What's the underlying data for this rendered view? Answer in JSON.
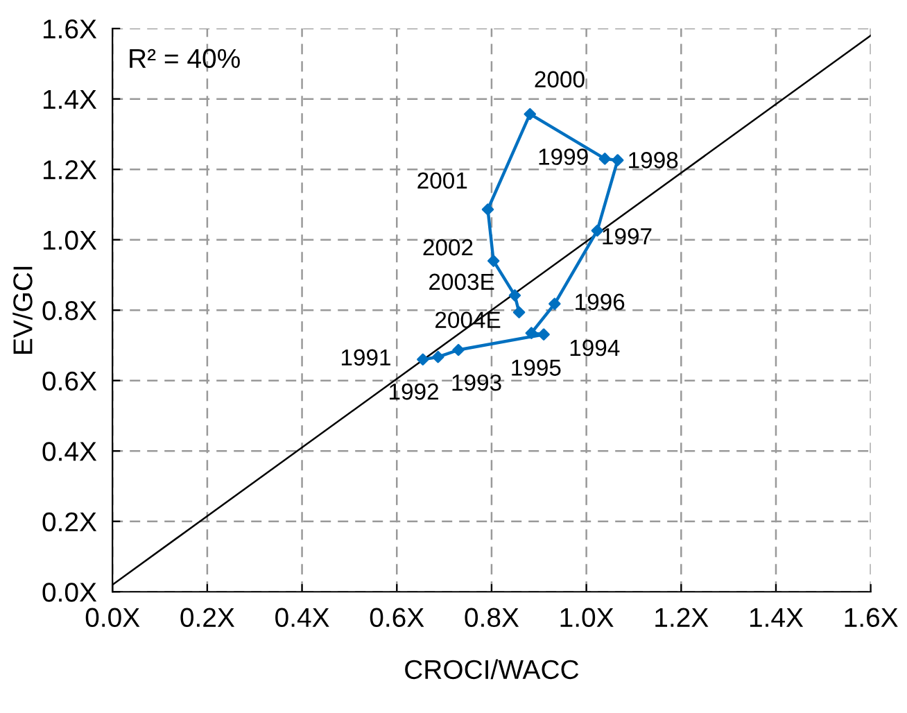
{
  "chart_data": {
    "type": "line",
    "xlabel": "CROCI/WACC",
    "ylabel": "EV/GCI",
    "series": [
      {
        "color": "#0070c0",
        "marker": "diamond",
        "x": [
          0.655,
          0.687,
          0.73,
          0.91,
          0.884,
          0.933,
          1.023,
          1.066,
          1.039,
          0.881,
          0.792,
          0.804,
          0.849,
          0.858
        ],
        "values": [
          0.66,
          0.667,
          0.687,
          0.731,
          0.735,
          0.818,
          1.026,
          1.226,
          1.23,
          1.357,
          1.086,
          0.94,
          0.842,
          0.794
        ]
      },
      {
        "color": "#000000",
        "marker": "none",
        "x": [
          0,
          1.6
        ],
        "values": [
          0.02,
          1.58
        ]
      }
    ],
    "annotations": [
      {
        "text": "1991",
        "x": 0.655,
        "y": 0.66
      },
      {
        "text": "1992",
        "x": 0.687,
        "y": 0.667
      },
      {
        "text": "1993",
        "x": 0.73,
        "y": 0.687
      },
      {
        "text": "1994",
        "x": 0.91,
        "y": 0.731
      },
      {
        "text": "1995",
        "x": 0.884,
        "y": 0.735
      },
      {
        "text": "1996",
        "x": 0.933,
        "y": 0.818
      },
      {
        "text": "1997",
        "x": 1.023,
        "y": 1.026
      },
      {
        "text": "1998",
        "x": 1.066,
        "y": 1.226
      },
      {
        "text": "1999",
        "x": 1.039,
        "y": 1.23
      },
      {
        "text": "2000",
        "x": 0.881,
        "y": 1.357
      },
      {
        "text": "2001",
        "x": 0.792,
        "y": 1.086
      },
      {
        "text": "2002",
        "x": 0.804,
        "y": 0.94
      },
      {
        "text": "2003E",
        "x": 0.849,
        "y": 0.842
      },
      {
        "text": "2004E",
        "x": 0.858,
        "y": 0.794
      },
      "R² = 40%"
    ],
    "xlim": [
      0,
      1.6
    ],
    "ylim": [
      0,
      1.6
    ],
    "xticks": [
      {
        "value": 0,
        "label": "0.0X"
      },
      {
        "value": 0.2,
        "label": "0.2X"
      },
      {
        "value": 0.4,
        "label": "0.4X"
      },
      {
        "value": 0.6,
        "label": "0.6X"
      },
      {
        "value": 0.8,
        "label": "0.8X"
      },
      {
        "value": 1.0,
        "label": "1.0X"
      },
      {
        "value": 1.2,
        "label": "1.2X"
      },
      {
        "value": 1.4,
        "label": "1.4X"
      },
      {
        "value": 1.6,
        "label": "1.6X"
      }
    ],
    "yticks": [
      {
        "value": 0,
        "label": "0.0X"
      },
      {
        "value": 0.2,
        "label": "0.2X"
      },
      {
        "value": 0.4,
        "label": "0.4X"
      },
      {
        "value": 0.6,
        "label": "0.6X"
      },
      {
        "value": 0.8,
        "label": "0.8X"
      },
      {
        "value": 1.0,
        "label": "1.0X"
      },
      {
        "value": 1.2,
        "label": "1.2X"
      },
      {
        "value": 1.4,
        "label": "1.4X"
      },
      {
        "value": 1.6,
        "label": "1.6X"
      }
    ],
    "grid": true,
    "legend": false
  }
}
